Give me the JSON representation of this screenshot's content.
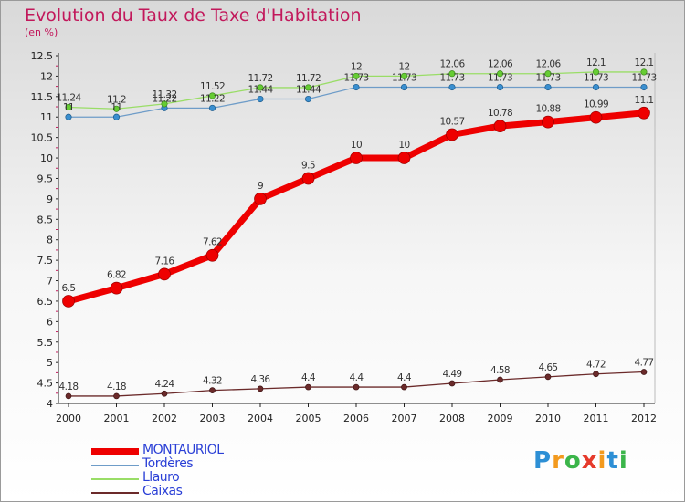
{
  "chart_data": {
    "type": "line",
    "title": "Evolution du Taux de Taxe d'Habitation",
    "subtitle": "(en %)",
    "x": [
      "2000",
      "2001",
      "2002",
      "2003",
      "2004",
      "2005",
      "2006",
      "2007",
      "2008",
      "2009",
      "2010",
      "2011",
      "2012"
    ],
    "ylim": [
      4,
      12.5
    ],
    "yticks": [
      "4",
      "4.5",
      "5",
      "5.5",
      "6",
      "6.5",
      "7",
      "7.5",
      "8",
      "8.5",
      "9",
      "9.5",
      "10",
      "10.5",
      "11",
      "11.5",
      "12",
      "12.5"
    ],
    "grid": false,
    "legend_position": "bottom-left",
    "series": [
      {
        "name": "MONTAURIOL",
        "color": "#ee0000",
        "values": [
          6.5,
          6.82,
          7.16,
          7.62,
          9,
          9.5,
          10,
          10,
          10.57,
          10.78,
          10.88,
          10.99,
          11.1
        ],
        "labels": [
          "6.5",
          "6.82",
          "7.16",
          "7.62",
          "9",
          "9.5",
          "10",
          "10",
          "10.57",
          "10.78",
          "10.88",
          "10.99",
          "11.1"
        ]
      },
      {
        "name": "Tordères",
        "color": "#6e9cc8",
        "values": [
          11,
          11,
          11.22,
          11.22,
          11.44,
          11.44,
          11.73,
          11.73,
          11.73,
          11.73,
          11.73,
          11.73,
          11.73
        ],
        "labels": [
          "11",
          "11",
          "11.22",
          "11.22",
          "11.44",
          "11.44",
          "11.73",
          "11.73",
          "11.73",
          "11.73",
          "11.73",
          "11.73",
          "11.73"
        ]
      },
      {
        "name": "Llauro",
        "color": "#99dd66",
        "values": [
          11.24,
          11.2,
          11.32,
          11.52,
          11.72,
          11.72,
          12,
          12,
          12.06,
          12.06,
          12.06,
          12.1,
          12.1
        ],
        "labels": [
          "11.24",
          "11.2",
          "11.32",
          "11.52",
          "11.72",
          "11.72",
          "12",
          "12",
          "12.06",
          "12.06",
          "12.06",
          "12.1",
          "12.1"
        ]
      },
      {
        "name": "Caixas",
        "color": "#6b2a2a",
        "values": [
          4.18,
          4.18,
          4.24,
          4.32,
          4.36,
          4.4,
          4.4,
          4.4,
          4.49,
          4.58,
          4.65,
          4.72,
          4.77
        ],
        "labels": [
          "4.18",
          "4.18",
          "4.24",
          "4.32",
          "4.36",
          "4.4",
          "4.4",
          "4.4",
          "4.49",
          "4.58",
          "4.65",
          "4.72",
          "4.77"
        ]
      }
    ]
  },
  "logo": {
    "letters": [
      "P",
      "r",
      "o",
      "x",
      "i",
      "t",
      "i"
    ]
  }
}
